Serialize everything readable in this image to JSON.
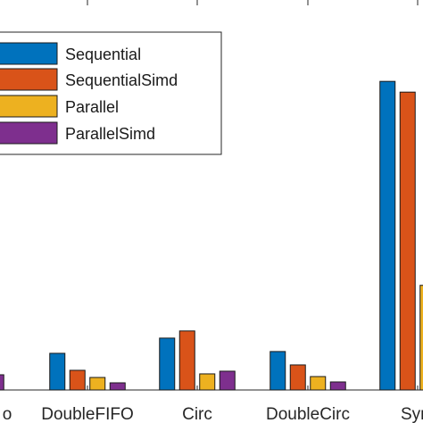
{
  "chart_data": {
    "type": "bar",
    "categories": [
      "FIFO",
      "DoubleFIFO",
      "Circ",
      "DoubleCirc",
      "Sym"
    ],
    "visible_tick_labels": [
      "o",
      "DoubleFIFO",
      "Circ",
      "DoubleCirc",
      "Sym"
    ],
    "series": [
      {
        "name": "Sequential",
        "color": "#0072BD",
        "values": [
          null,
          41,
          58,
          43,
          345
        ]
      },
      {
        "name": "SequentialSimd",
        "color": "#D95319",
        "values": [
          null,
          22,
          66,
          28,
          333
        ]
      },
      {
        "name": "Parallel",
        "color": "#EDB120",
        "values": [
          null,
          14,
          18,
          15,
          117
        ]
      },
      {
        "name": "ParallelSimd",
        "color": "#7E2F8E",
        "values": [
          17,
          8,
          21,
          9,
          null
        ]
      }
    ],
    "ylim": [
      0,
      420
    ],
    "legend": {
      "placement": "top-left",
      "entries": [
        "Sequential",
        "SequentialSimd",
        "Parallel",
        "ParallelSimd"
      ]
    },
    "grid": false
  }
}
